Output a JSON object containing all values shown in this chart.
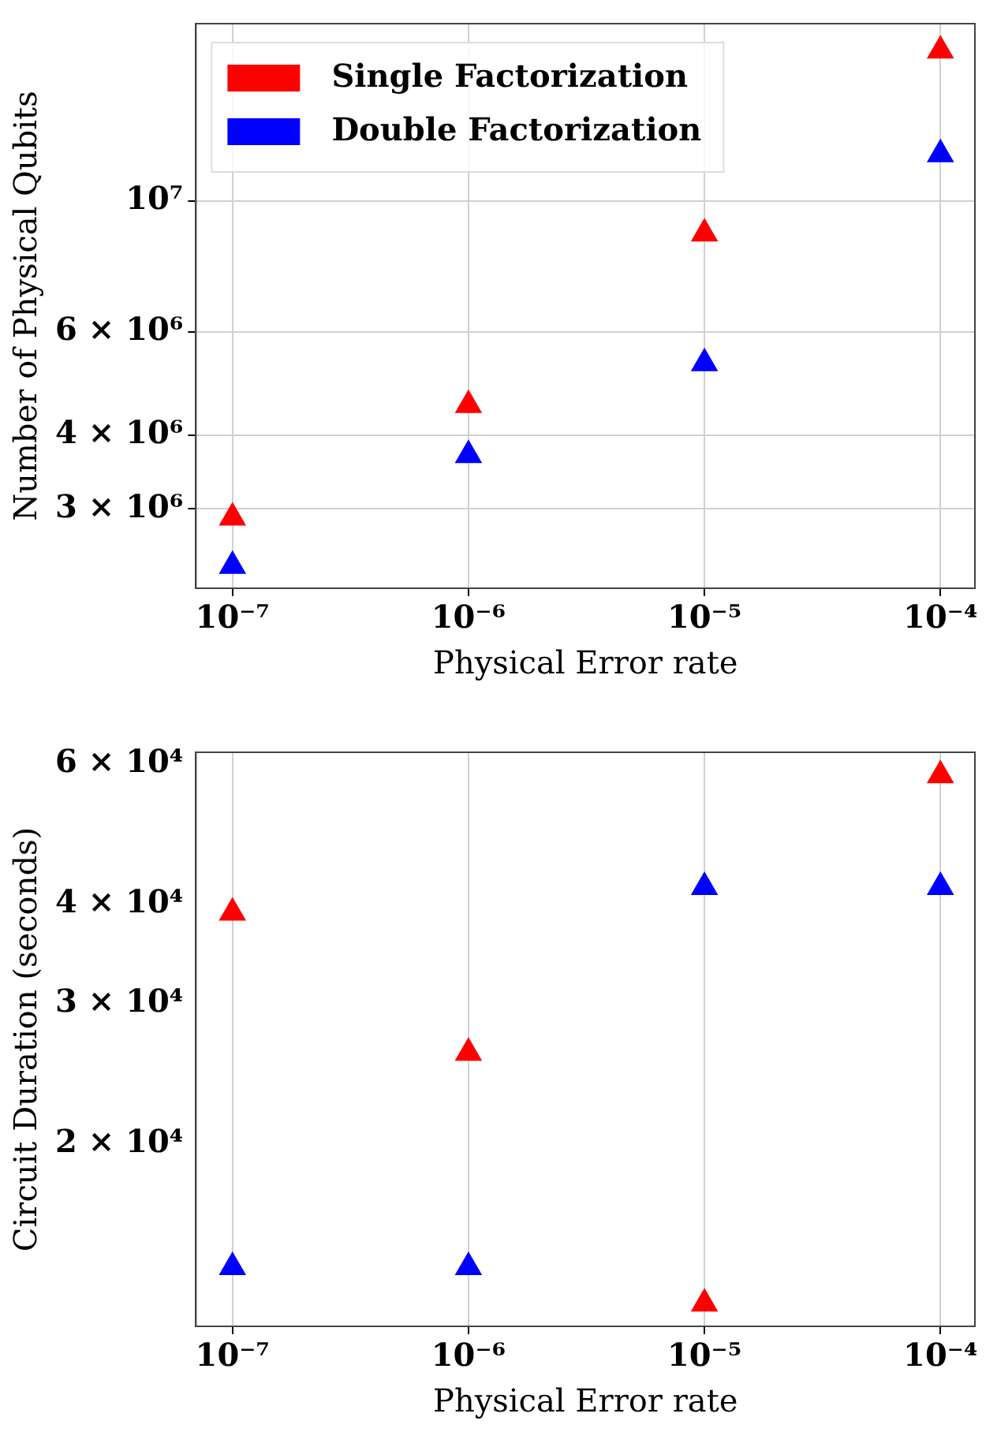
{
  "chart_data": [
    {
      "type": "scatter",
      "xlabel": "Physical Error rate",
      "ylabel": "Number of Physical Qubits",
      "log": "xy",
      "grid": true,
      "legend": "top left",
      "marker": "triangle",
      "x": [
        1e-07,
        1e-06,
        1e-05,
        0.0001
      ],
      "xlim": [
        7e-08,
        0.00014
      ],
      "ylim": [
        2200000.0,
        20000000.0
      ],
      "xticks": [
        {
          "value": 1e-07,
          "label": "10⁻⁷"
        },
        {
          "value": 1e-06,
          "label": "10⁻⁶"
        },
        {
          "value": 1e-05,
          "label": "10⁻⁵"
        },
        {
          "value": 0.0001,
          "label": "10⁻⁴"
        }
      ],
      "yticks": [
        {
          "value": 3000000.0,
          "label": "3 × 10⁶"
        },
        {
          "value": 4000000.0,
          "label": "4 × 10⁶"
        },
        {
          "value": 6000000.0,
          "label": "6 × 10⁶"
        },
        {
          "value": 10000000.0,
          "label": "10⁷"
        }
      ],
      "series": [
        {
          "name": "Single Factorization",
          "color": "#ff0000",
          "values": [
            2900000.0,
            4500000.0,
            8800000.0,
            18000000.0
          ]
        },
        {
          "name": "Double Factorization",
          "color": "#0000ff",
          "values": [
            2400000.0,
            3700000.0,
            5300000.0,
            12000000.0
          ]
        }
      ]
    },
    {
      "type": "scatter",
      "xlabel": "Physical Error rate",
      "ylabel": "Circuit Duration (seconds)",
      "log": "xy",
      "grid": "x",
      "marker": "triangle",
      "x": [
        1e-07,
        1e-06,
        1e-05,
        0.0001
      ],
      "xlim": [
        7e-08,
        0.00014
      ],
      "ylim": [
        11800.0,
        62000.0
      ],
      "xticks": [
        {
          "value": 1e-07,
          "label": "10⁻⁷"
        },
        {
          "value": 1e-06,
          "label": "10⁻⁶"
        },
        {
          "value": 1e-05,
          "label": "10⁻⁵"
        },
        {
          "value": 0.0001,
          "label": "10⁻⁴"
        }
      ],
      "yticks": [
        {
          "value": 20000.0,
          "label": "2 × 10⁴"
        },
        {
          "value": 30000.0,
          "label": "3 × 10⁴"
        },
        {
          "value": 40000.0,
          "label": "4 × 10⁴"
        },
        {
          "value": 60000.0,
          "label": "6 × 10⁴"
        }
      ],
      "series": [
        {
          "color": "#ff0000",
          "values": [
            39000.0,
            26000.0,
            12600.0,
            58000.0
          ]
        },
        {
          "color": "#0000ff",
          "values": [
            14000.0,
            14000.0,
            42000.0,
            42000.0
          ]
        }
      ]
    }
  ]
}
